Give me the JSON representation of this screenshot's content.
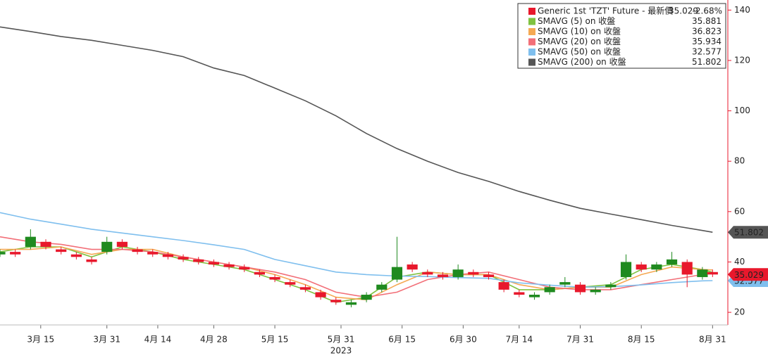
{
  "chart_data": {
    "type": "candlestick",
    "x_year_label": "2023",
    "xlim": [
      0,
      143
    ],
    "xticks": [
      {
        "value": 8,
        "label": "3月 15"
      },
      {
        "value": 21,
        "label": "3月 31"
      },
      {
        "value": 31,
        "label": "4月 14"
      },
      {
        "value": 42,
        "label": "4月 28"
      },
      {
        "value": 54,
        "label": "5月 15"
      },
      {
        "value": 67,
        "label": "5月 31"
      },
      {
        "value": 79,
        "label": "6月 15"
      },
      {
        "value": 91,
        "label": "6月 30"
      },
      {
        "value": 102,
        "label": "7月 14"
      },
      {
        "value": 114,
        "label": "7月 31"
      },
      {
        "value": 126,
        "label": "8月 15"
      },
      {
        "value": 140,
        "label": "8月 31"
      }
    ],
    "ylim": [
      15,
      144
    ],
    "yticks": [
      20,
      40,
      60,
      80,
      100,
      120,
      140
    ],
    "grid": true,
    "legend": "top-right",
    "price": {
      "name": "Generic 1st 'TZT' Future - 最新價",
      "color": "#e8182c",
      "up_color": "#1f8a1f",
      "down_color": "#e8182c",
      "last": 35.029,
      "change_label": "-2.68%",
      "x": [
        0,
        3,
        6,
        9,
        12,
        15,
        18,
        21,
        24,
        27,
        30,
        33,
        36,
        39,
        42,
        45,
        48,
        51,
        54,
        57,
        60,
        63,
        66,
        69,
        72,
        75,
        78,
        81,
        84,
        87,
        90,
        93,
        96,
        99,
        102,
        105,
        108,
        111,
        114,
        117,
        120,
        123,
        126,
        129,
        132,
        135,
        138,
        140
      ],
      "open": [
        43,
        44,
        46,
        48,
        45,
        43,
        41,
        44,
        48,
        45,
        44,
        43,
        42,
        41,
        40,
        39,
        38,
        36,
        34,
        32,
        30,
        28,
        25,
        23,
        25,
        29,
        33,
        39,
        36,
        35,
        34,
        36,
        35,
        32,
        28,
        26,
        28,
        31,
        31,
        28,
        30,
        34,
        39,
        37,
        39,
        40,
        34,
        36
      ],
      "high": [
        45,
        45,
        53,
        49,
        46,
        44,
        42,
        50,
        49,
        46,
        45,
        44,
        43,
        42,
        41,
        40,
        39,
        37,
        35,
        33,
        31,
        29,
        26,
        25,
        28,
        32,
        50,
        40,
        37,
        36,
        39,
        37,
        36,
        33,
        29,
        28,
        31,
        34,
        32,
        30,
        32,
        43,
        40,
        40,
        44,
        41,
        38,
        37
      ],
      "low": [
        42,
        42,
        45,
        45,
        43,
        41,
        39,
        43,
        45,
        43,
        42,
        41,
        40,
        39,
        38,
        37,
        36,
        34,
        32,
        30,
        28,
        25,
        23,
        22,
        24,
        28,
        32,
        36,
        34,
        33,
        33,
        34,
        33,
        28,
        26,
        25,
        27,
        30,
        27,
        27,
        29,
        33,
        36,
        36,
        38,
        30,
        33,
        34
      ],
      "close": [
        44,
        43,
        50,
        46,
        44,
        42,
        40,
        48,
        46,
        44,
        43,
        42,
        41,
        40,
        39,
        38,
        37,
        35,
        33,
        31,
        29,
        26,
        24,
        24,
        27,
        31,
        38,
        37,
        35,
        34,
        37,
        35,
        34,
        29,
        27,
        27,
        30,
        32,
        28,
        29,
        31,
        40,
        37,
        39,
        41,
        35,
        37,
        35.029
      ]
    },
    "series": [
      {
        "name": "SMAVG (5)  on 收盤",
        "color": "#7fc241",
        "last": 35.881,
        "x": [
          0,
          6,
          12,
          18,
          24,
          30,
          36,
          42,
          48,
          54,
          60,
          66,
          72,
          78,
          84,
          90,
          96,
          102,
          108,
          114,
          120,
          126,
          132,
          138,
          140
        ],
        "values": [
          44,
          46,
          46,
          42,
          46,
          44,
          41,
          39,
          37,
          33,
          29,
          24,
          26,
          34,
          36,
          35,
          35,
          29,
          29,
          30,
          31,
          37,
          39,
          37,
          35.881
        ]
      },
      {
        "name": "SMAVG (10)  on 收盤",
        "color": "#f5a953",
        "last": 36.823,
        "x": [
          0,
          6,
          12,
          18,
          24,
          30,
          36,
          42,
          48,
          54,
          60,
          66,
          72,
          78,
          84,
          90,
          96,
          102,
          108,
          114,
          120,
          126,
          132,
          138,
          140
        ],
        "values": [
          45,
          45,
          46,
          43,
          45,
          45,
          42,
          40,
          38,
          35,
          31,
          26,
          25,
          31,
          36,
          35,
          35,
          31,
          29,
          30,
          30,
          35,
          38,
          37,
          36.823
        ]
      },
      {
        "name": "SMAVG (20)  on 收盤",
        "color": "#f26f78",
        "last": 35.934,
        "x": [
          0,
          6,
          12,
          18,
          24,
          30,
          36,
          42,
          48,
          54,
          60,
          66,
          72,
          78,
          84,
          90,
          96,
          102,
          108,
          114,
          120,
          126,
          132,
          138,
          140
        ],
        "values": [
          50,
          48,
          47,
          45,
          45,
          44,
          42,
          40,
          38,
          36,
          33,
          28,
          26,
          28,
          33,
          35,
          36,
          33,
          30,
          29,
          29,
          31,
          33,
          35,
          35.934
        ]
      },
      {
        "name": "SMAVG (50)  on 收盤",
        "color": "#7fbfee",
        "last": 32.577,
        "x": [
          0,
          6,
          12,
          18,
          24,
          30,
          36,
          42,
          48,
          54,
          60,
          66,
          72,
          78,
          84,
          90,
          96,
          102,
          108,
          114,
          120,
          126,
          132,
          138,
          140
        ],
        "values": [
          59.6,
          57,
          55,
          53,
          51.5,
          50,
          48.5,
          46.8,
          45,
          41,
          38.5,
          36,
          35,
          34.4,
          34.2,
          33.8,
          33.5,
          31.7,
          30.8,
          30,
          30.2,
          30.9,
          31.8,
          32.5,
          32.577
        ]
      },
      {
        "name": "SMAVG (200)  on 收盤",
        "color": "#555555",
        "last": 51.802,
        "x": [
          0,
          6,
          12,
          18,
          24,
          30,
          36,
          42,
          48,
          54,
          60,
          66,
          72,
          78,
          84,
          90,
          96,
          102,
          108,
          114,
          120,
          126,
          132,
          138,
          140
        ],
        "values": [
          133.3,
          131.5,
          129.5,
          128,
          126,
          124,
          121.5,
          117,
          114,
          109,
          104,
          98,
          91,
          85,
          80,
          75.5,
          72,
          68,
          64.5,
          61.3,
          59,
          56.8,
          54.5,
          52.5,
          51.802
        ]
      }
    ]
  }
}
